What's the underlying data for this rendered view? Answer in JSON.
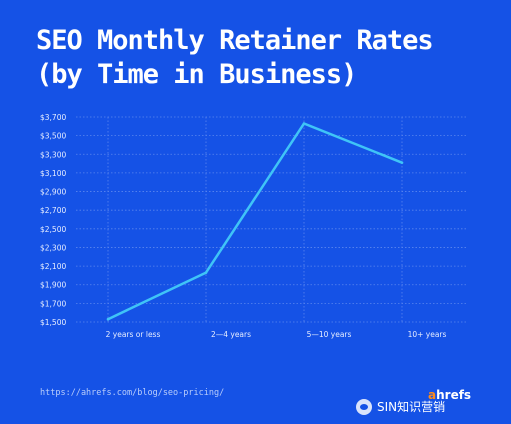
{
  "chart_data": {
    "type": "line",
    "title": "SEO Monthly Retainer Rates",
    "subtitle": "(by Time in Business)",
    "categories": [
      "2 years or less",
      "2—4 years",
      "5—10 years",
      "10+ years"
    ],
    "values": [
      1530,
      2030,
      3630,
      3210
    ],
    "yticks": [
      1500,
      1700,
      1900,
      2100,
      2300,
      2500,
      2700,
      2900,
      3100,
      3300,
      3500,
      3700
    ],
    "ytick_labels": [
      "$1,500",
      "$1,700",
      "$1,900",
      "$2,100",
      "$2,300",
      "$2,500",
      "$2,700",
      "$2,900",
      "$3,100",
      "$3,300",
      "$3,500",
      "$3,700"
    ],
    "ylim": [
      1500,
      3700
    ],
    "grid": true,
    "colors": {
      "background": "#1552e6",
      "line": "#3fc4f7",
      "grid": "#5b86ee"
    }
  },
  "footer": {
    "url": "https://ahrefs.com/blog/seo-pricing/",
    "brand_a": "a",
    "brand_rest": "hrefs",
    "watermark": "SIN知识营销"
  }
}
